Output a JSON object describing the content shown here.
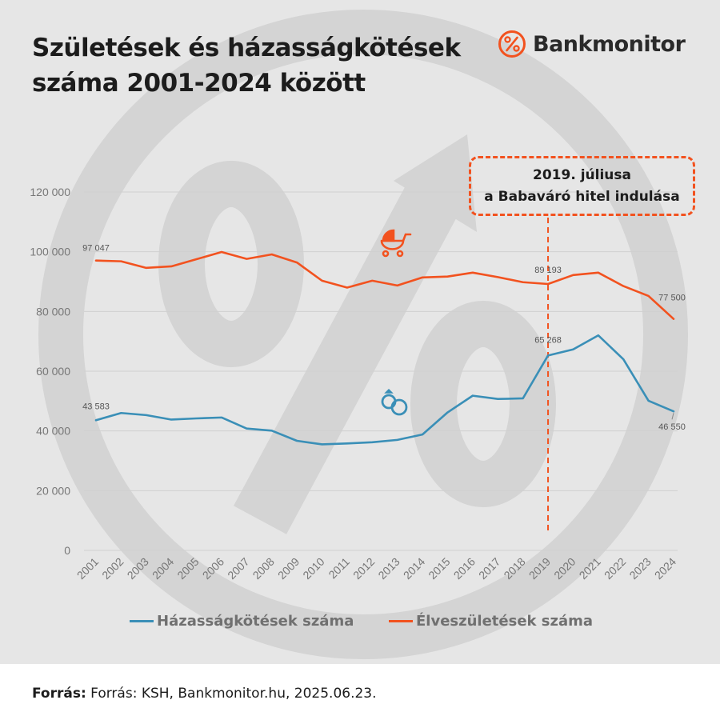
{
  "title": {
    "line1": "Születések és házasságkötések",
    "line2": "száma 2001-2024 között"
  },
  "logo": {
    "text": "Bankmonitor",
    "icon": "percent-circle-icon",
    "color": "#f2521f"
  },
  "annotation": {
    "line1": "2019. júliusa",
    "line2": "a Babaváró hitel indulása",
    "category": "2019",
    "color": "#f2521f"
  },
  "icons": {
    "births": "baby-stroller-icon",
    "marriages": "wedding-rings-icon"
  },
  "footer": {
    "label": "Forrás:",
    "text": "Forrás: KSH, Bankmonitor.hu, 2025.06.23."
  },
  "legend": {
    "placement": "bottom",
    "items": [
      {
        "label": "Házasságkötések száma",
        "color": "#3a8fb7"
      },
      {
        "label": "Élveszületések száma",
        "color": "#f2521f"
      }
    ]
  },
  "chart_data": {
    "type": "line",
    "categories": [
      "2001",
      "2002",
      "2003",
      "2004",
      "2005",
      "2006",
      "2007",
      "2008",
      "2009",
      "2010",
      "2011",
      "2012",
      "2013",
      "2014",
      "2015",
      "2016",
      "2017",
      "2018",
      "2019",
      "2020",
      "2021",
      "2022",
      "2023",
      "2024"
    ],
    "ylim": [
      0,
      120000
    ],
    "yticks": [
      0,
      20000,
      40000,
      60000,
      80000,
      100000,
      120000
    ],
    "ytick_labels": [
      "0",
      "20 000",
      "40 000",
      "60 000",
      "80 000",
      "100 000",
      "120 000"
    ],
    "grid": true,
    "series": [
      {
        "name": "Élveszületések száma",
        "color": "#f2521f",
        "values": [
          97047,
          96800,
          94600,
          95100,
          97500,
          99900,
          97600,
          99100,
          96400,
          90300,
          88000,
          90300,
          88700,
          91400,
          91700,
          93000,
          91500,
          89800,
          89193,
          92200,
          93000,
          88500,
          85200,
          77500
        ]
      },
      {
        "name": "Házasságkötések száma",
        "color": "#3a8fb7",
        "values": [
          43583,
          46000,
          45300,
          43800,
          44200,
          44500,
          40800,
          40100,
          36700,
          35500,
          35800,
          36200,
          37000,
          38800,
          46200,
          51800,
          50700,
          50900,
          65268,
          67300,
          72000,
          64000,
          50100,
          46550
        ]
      }
    ],
    "data_labels": [
      {
        "series": 0,
        "index": 0,
        "text": "97 047"
      },
      {
        "series": 0,
        "index": 18,
        "text": "89 193"
      },
      {
        "series": 0,
        "index": 23,
        "text": "77 500"
      },
      {
        "series": 1,
        "index": 0,
        "text": "43 583"
      },
      {
        "series": 1,
        "index": 18,
        "text": "65 268"
      },
      {
        "series": 1,
        "index": 23,
        "text": "46 550"
      }
    ]
  }
}
